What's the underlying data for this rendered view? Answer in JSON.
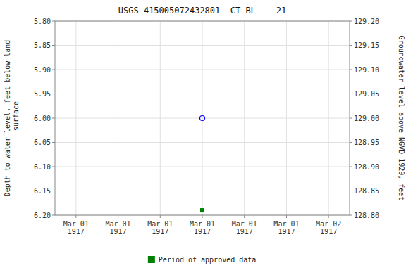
{
  "chart_data": {
    "type": "scatter",
    "title": "USGS 415005072432801  CT-BL    21",
    "y_label": "Depth to water level, feet below land\n surface",
    "y2_label": "Groundwater level above NGVD 1929, feet",
    "categories": [
      "Mar 01\n1917",
      "Mar 01\n1917",
      "Mar 01\n1917",
      "Mar 01\n1917",
      "Mar 01\n1917",
      "Mar 01\n1917",
      "Mar 02\n1917"
    ],
    "series": [
      {
        "color": "blue",
        "marker": "circle",
        "values": [
          null,
          null,
          null,
          6.0,
          null,
          null,
          null
        ]
      },
      {
        "name": "Period of approved data",
        "color": "#008000",
        "marker": "square",
        "values": [
          null,
          null,
          null,
          6.19,
          null,
          null,
          null
        ]
      }
    ],
    "ylim": [
      6.2,
      5.8
    ],
    "yticks": [
      {
        "value": 5.8,
        "label": "5.80"
      },
      {
        "value": 5.85,
        "label": "5.85"
      },
      {
        "value": 5.9,
        "label": "5.90"
      },
      {
        "value": 5.95,
        "label": "5.95"
      },
      {
        "value": 6.0,
        "label": "6.00"
      },
      {
        "value": 6.05,
        "label": "6.05"
      },
      {
        "value": 6.1,
        "label": "6.10"
      },
      {
        "value": 6.15,
        "label": "6.15"
      },
      {
        "value": 6.2,
        "label": "6.20"
      }
    ],
    "y2lim": [
      128.8,
      129.2
    ],
    "y2ticks": [
      {
        "value": 128.8,
        "label": "128.80"
      },
      {
        "value": 128.85,
        "label": "128.85"
      },
      {
        "value": 128.9,
        "label": "128.90"
      },
      {
        "value": 128.95,
        "label": "128.95"
      },
      {
        "value": 129.0,
        "label": "129.00"
      },
      {
        "value": 129.05,
        "label": "129.05"
      },
      {
        "value": 129.1,
        "label": "129.10"
      },
      {
        "value": 129.15,
        "label": "129.15"
      },
      {
        "value": 129.2,
        "label": "129.20"
      }
    ],
    "grid": true,
    "legend": "bottom"
  }
}
